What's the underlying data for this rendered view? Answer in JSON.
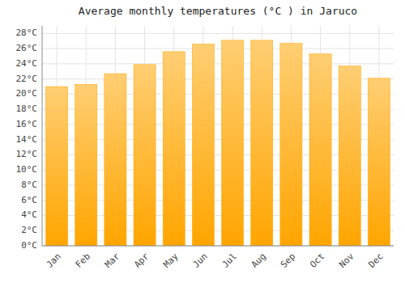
{
  "chart_data": {
    "type": "bar",
    "title": "Average monthly temperatures (°C ) in Jaruco",
    "categories": [
      "Jan",
      "Feb",
      "Mar",
      "Apr",
      "May",
      "Jun",
      "Jul",
      "Aug",
      "Sep",
      "Oct",
      "Nov",
      "Dec"
    ],
    "values": [
      21.0,
      21.3,
      22.7,
      23.9,
      25.6,
      26.6,
      27.1,
      27.1,
      26.7,
      25.3,
      23.7,
      22.1
    ],
    "color": "#FFA500",
    "ylim": [
      0,
      29
    ],
    "yticks": [
      {
        "value": 0,
        "label": "0°C"
      },
      {
        "value": 2,
        "label": "2°C"
      },
      {
        "value": 4,
        "label": "4°C"
      },
      {
        "value": 6,
        "label": "6°C"
      },
      {
        "value": 8,
        "label": "8°C"
      },
      {
        "value": 10,
        "label": "10°C"
      },
      {
        "value": 12,
        "label": "12°C"
      },
      {
        "value": 14,
        "label": "14°C"
      },
      {
        "value": 16,
        "label": "16°C"
      },
      {
        "value": 18,
        "label": "18°C"
      },
      {
        "value": 20,
        "label": "20°C"
      },
      {
        "value": 22,
        "label": "22°C"
      },
      {
        "value": 24,
        "label": "24°C"
      },
      {
        "value": 26,
        "label": "26°C"
      },
      {
        "value": 28,
        "label": "28°C"
      }
    ],
    "grid": true
  }
}
